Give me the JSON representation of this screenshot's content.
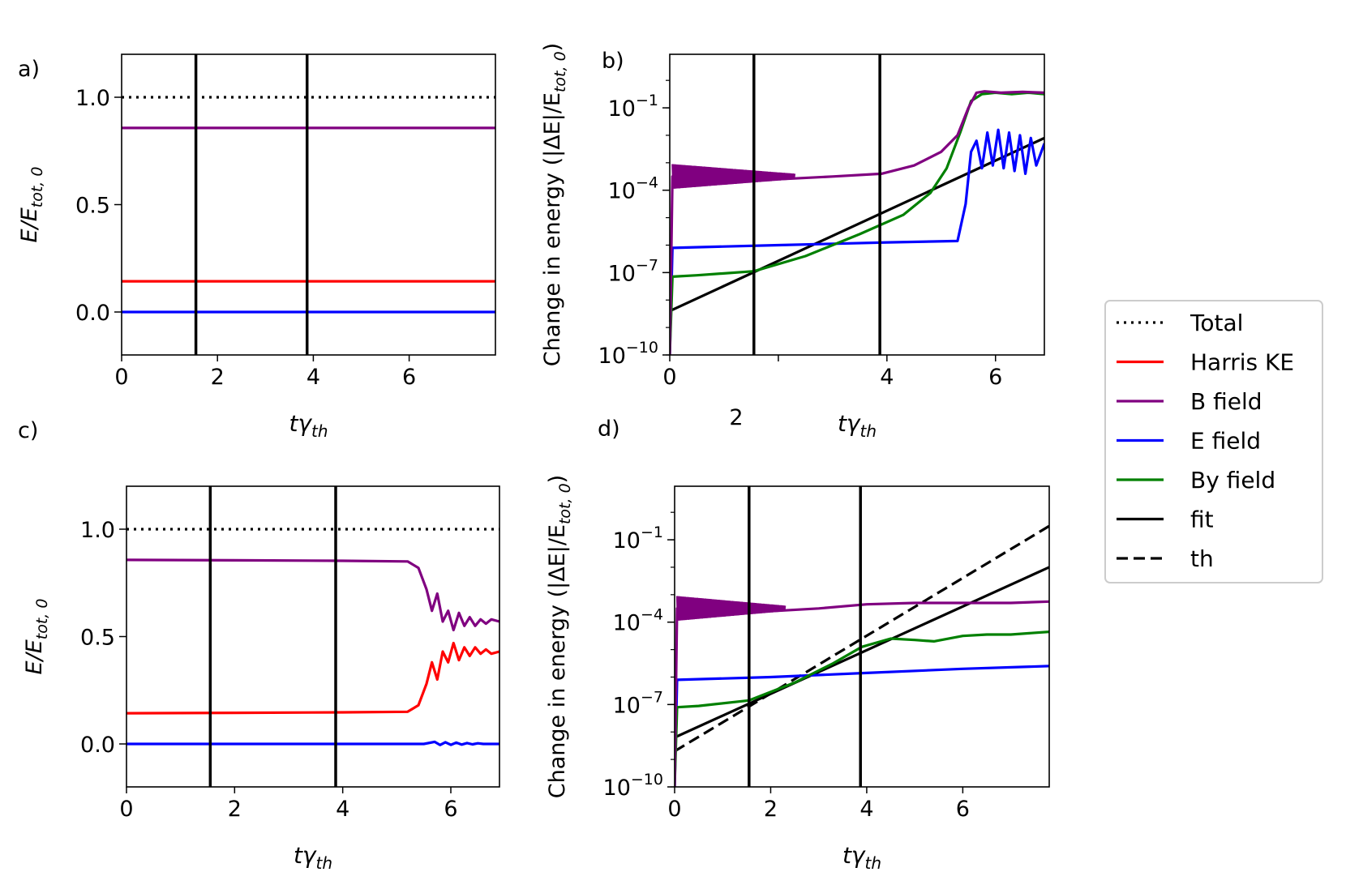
{
  "colors": {
    "total": "#000000",
    "harris": "#ff0000",
    "bfield": "#800080",
    "efield": "#0000ff",
    "byfield": "#008000",
    "fit": "#000000",
    "th": "#000000"
  },
  "legend": {
    "placement": "right",
    "entries": [
      {
        "key": "total",
        "label": "Total",
        "style": "dotted"
      },
      {
        "key": "harris",
        "label": "Harris KE",
        "style": "solid"
      },
      {
        "key": "bfield",
        "label": "B field",
        "style": "solid"
      },
      {
        "key": "efield",
        "label": "E field",
        "style": "solid"
      },
      {
        "key": "byfield",
        "label": "By field",
        "style": "solid"
      },
      {
        "key": "fit",
        "label": "fit",
        "style": "solid"
      },
      {
        "key": "th",
        "label": "th",
        "style": "dashed"
      }
    ]
  },
  "chart_data": [
    {
      "id": "a",
      "panel_label": "a)",
      "type": "line",
      "scale": "linear",
      "xlabel_main": "t",
      "xlabel_sub": "th",
      "ylabel": "E/E",
      "ylabel_sub": "tot, 0",
      "xlim": [
        0,
        7.8
      ],
      "ylim": [
        -0.2,
        1.2
      ],
      "xticks": [
        0,
        2,
        4,
        6
      ],
      "xtick_labels": [
        "0",
        "2",
        "4",
        "6"
      ],
      "yticks": [
        0.0,
        0.5,
        1.0
      ],
      "ytick_labels": [
        "0.0",
        "0.5",
        "1.0"
      ],
      "vlines": [
        1.55,
        3.87
      ],
      "series": [
        {
          "key": "total",
          "style": "dotted",
          "x": [
            0,
            7.8
          ],
          "y": [
            1.0,
            1.0
          ]
        },
        {
          "key": "bfield",
          "style": "solid",
          "x": [
            0,
            7.8
          ],
          "y": [
            0.857,
            0.857
          ]
        },
        {
          "key": "harris",
          "style": "solid",
          "x": [
            0,
            7.8
          ],
          "y": [
            0.143,
            0.143
          ]
        },
        {
          "key": "efield",
          "style": "solid",
          "x": [
            0,
            7.8
          ],
          "y": [
            0.0,
            0.0
          ]
        }
      ]
    },
    {
      "id": "b",
      "panel_label": "b)",
      "type": "line",
      "scale": "log",
      "xlabel_main": "t",
      "xlabel_sub": "th",
      "ylabel": "Change in energy (|ΔE|/E",
      "ylabel_sub": "tot, 0",
      "ylabel_end": ")",
      "xlim": [
        0,
        6.9
      ],
      "ylim_log10": [
        -10,
        0.95
      ],
      "xticks": [
        0,
        4,
        6
      ],
      "xtick_labels": [
        "0",
        "4",
        "6"
      ],
      "extra_tick": {
        "x": 2.0,
        "label": "2"
      },
      "yticks_log10": [
        -10,
        -7,
        -4,
        -1
      ],
      "ytick_labels": [
        "10",
        "10",
        "10",
        "10"
      ],
      "ytick_exps": [
        "−10",
        "−7",
        "−4",
        "−1"
      ],
      "vlines": [
        1.55,
        3.87
      ],
      "series": [
        {
          "key": "fit",
          "style": "solid",
          "x": [
            0,
            6.9
          ],
          "y_log10": [
            -8.4,
            -2.1
          ]
        },
        {
          "key": "efield",
          "style": "solid",
          "x": [
            0,
            0.05,
            1,
            2,
            3,
            4,
            5.3,
            5.45,
            5.55,
            5.65,
            5.75,
            5.85,
            5.95,
            6.05,
            6.15,
            6.25,
            6.35,
            6.45,
            6.55,
            6.65,
            6.75,
            6.9
          ],
          "y_log10": [
            -10,
            -6.1,
            -6.05,
            -6.0,
            -5.95,
            -5.9,
            -5.85,
            -4.5,
            -2.6,
            -2.2,
            -3.2,
            -1.9,
            -3.1,
            -1.8,
            -3.2,
            -1.9,
            -3.3,
            -2.0,
            -3.4,
            -2.1,
            -3.1,
            -2.3
          ]
        },
        {
          "key": "byfield",
          "style": "solid",
          "x": [
            0,
            0.05,
            0.5,
            1.55,
            2.5,
            3.5,
            4.3,
            4.8,
            5.1,
            5.35,
            5.55,
            5.75,
            6.0,
            6.3,
            6.6,
            6.9
          ],
          "y_log10": [
            -10,
            -7.15,
            -7.1,
            -6.95,
            -6.4,
            -5.6,
            -4.9,
            -4.1,
            -3.2,
            -1.9,
            -0.75,
            -0.5,
            -0.45,
            -0.5,
            -0.45,
            -0.5
          ]
        },
        {
          "key": "bfield",
          "style": "solid",
          "x": [
            0,
            0.05,
            1,
            2,
            3,
            3.9,
            4.5,
            5.0,
            5.3,
            5.5,
            5.65,
            5.8,
            6.1,
            6.5,
            6.9
          ],
          "y_log10": [
            -10,
            -3.5,
            -3.55,
            -3.6,
            -3.5,
            -3.4,
            -3.1,
            -2.6,
            -2.0,
            -1.0,
            -0.45,
            -0.4,
            -0.45,
            -0.42,
            -0.45
          ]
        }
      ],
      "oscillation": {
        "key": "bfield",
        "x_range": [
          0.05,
          2.3
        ],
        "center_log10": -3.5,
        "amp_start": 0.45,
        "amp_end": 0.1
      }
    },
    {
      "id": "c",
      "panel_label": "c)",
      "type": "line",
      "scale": "linear",
      "xlabel_main": "t",
      "xlabel_sub": "th",
      "ylabel": "E/E",
      "ylabel_sub": "tot, 0",
      "xlim": [
        0,
        6.9
      ],
      "ylim": [
        -0.2,
        1.2
      ],
      "xticks": [
        0,
        2,
        4,
        6
      ],
      "xtick_labels": [
        "0",
        "2",
        "4",
        "6"
      ],
      "yticks": [
        0.0,
        0.5,
        1.0
      ],
      "ytick_labels": [
        "0.0",
        "0.5",
        "1.0"
      ],
      "vlines": [
        1.55,
        3.87
      ],
      "series": [
        {
          "key": "total",
          "style": "dotted",
          "x": [
            0,
            6.9
          ],
          "y": [
            1.0,
            1.0
          ]
        },
        {
          "key": "bfield",
          "style": "solid",
          "x": [
            0,
            2,
            4,
            5.2,
            5.4,
            5.55,
            5.65,
            5.75,
            5.85,
            5.95,
            6.05,
            6.15,
            6.25,
            6.35,
            6.45,
            6.55,
            6.65,
            6.75,
            6.9
          ],
          "y": [
            0.857,
            0.855,
            0.853,
            0.85,
            0.82,
            0.72,
            0.62,
            0.7,
            0.57,
            0.62,
            0.53,
            0.61,
            0.55,
            0.59,
            0.55,
            0.58,
            0.56,
            0.58,
            0.57
          ]
        },
        {
          "key": "harris",
          "style": "solid",
          "x": [
            0,
            2,
            4,
            5.2,
            5.4,
            5.55,
            5.65,
            5.75,
            5.85,
            5.95,
            6.05,
            6.15,
            6.25,
            6.35,
            6.45,
            6.55,
            6.65,
            6.75,
            6.9
          ],
          "y": [
            0.143,
            0.145,
            0.147,
            0.15,
            0.18,
            0.28,
            0.38,
            0.3,
            0.43,
            0.38,
            0.47,
            0.39,
            0.45,
            0.41,
            0.45,
            0.42,
            0.44,
            0.42,
            0.43
          ]
        },
        {
          "key": "efield",
          "style": "solid",
          "x": [
            0,
            5.5,
            5.7,
            5.8,
            5.9,
            6.0,
            6.1,
            6.2,
            6.3,
            6.4,
            6.5,
            6.6,
            6.9
          ],
          "y": [
            0.0,
            0.0,
            0.01,
            -0.005,
            0.008,
            -0.004,
            0.006,
            -0.003,
            0.004,
            -0.002,
            0.003,
            0.0,
            0.0
          ]
        }
      ]
    },
    {
      "id": "d",
      "panel_label": "d)",
      "type": "line",
      "scale": "log",
      "xlabel_main": "t",
      "xlabel_sub": "th",
      "ylabel": "Change in energy (|ΔE|/E",
      "ylabel_sub": "tot, 0",
      "ylabel_end": ")",
      "xlim": [
        0,
        7.8
      ],
      "ylim_log10": [
        -10,
        0.95
      ],
      "xticks": [
        0,
        2,
        4,
        6
      ],
      "xtick_labels": [
        "0",
        "2",
        "4",
        "6"
      ],
      "yticks_log10": [
        -10,
        -7,
        -4,
        -1
      ],
      "ytick_labels": [
        "10",
        "10",
        "10",
        "10"
      ],
      "ytick_exps": [
        "−10",
        "−7",
        "−4",
        "−1"
      ],
      "vlines": [
        1.55,
        3.87
      ],
      "series": [
        {
          "key": "th",
          "style": "dashed",
          "x": [
            0,
            7.8
          ],
          "y_log10": [
            -8.7,
            -0.5
          ]
        },
        {
          "key": "fit",
          "style": "solid",
          "x": [
            0,
            7.8
          ],
          "y_log10": [
            -8.2,
            -2.0
          ]
        },
        {
          "key": "efield",
          "style": "solid",
          "x": [
            0,
            0.05,
            2,
            4,
            6,
            7.8
          ],
          "y_log10": [
            -10,
            -6.1,
            -6.0,
            -5.85,
            -5.7,
            -5.6
          ]
        },
        {
          "key": "byfield",
          "style": "solid",
          "x": [
            0,
            0.05,
            0.5,
            1.55,
            2.5,
            3.3,
            3.9,
            4.5,
            5.0,
            5.4,
            6.0,
            6.5,
            7.0,
            7.8
          ],
          "y_log10": [
            -10,
            -7.1,
            -7.05,
            -6.85,
            -6.2,
            -5.5,
            -4.9,
            -4.6,
            -4.65,
            -4.7,
            -4.5,
            -4.45,
            -4.45,
            -4.35
          ]
        },
        {
          "key": "bfield",
          "style": "solid",
          "x": [
            0,
            0.05,
            1,
            2,
            3,
            4,
            5,
            6,
            7,
            7.8
          ],
          "y_log10": [
            -10,
            -3.5,
            -3.55,
            -3.6,
            -3.5,
            -3.35,
            -3.3,
            -3.3,
            -3.3,
            -3.25
          ]
        }
      ],
      "oscillation": {
        "key": "bfield",
        "x_range": [
          0.05,
          2.3
        ],
        "center_log10": -3.5,
        "amp_start": 0.45,
        "amp_end": 0.1
      }
    }
  ]
}
